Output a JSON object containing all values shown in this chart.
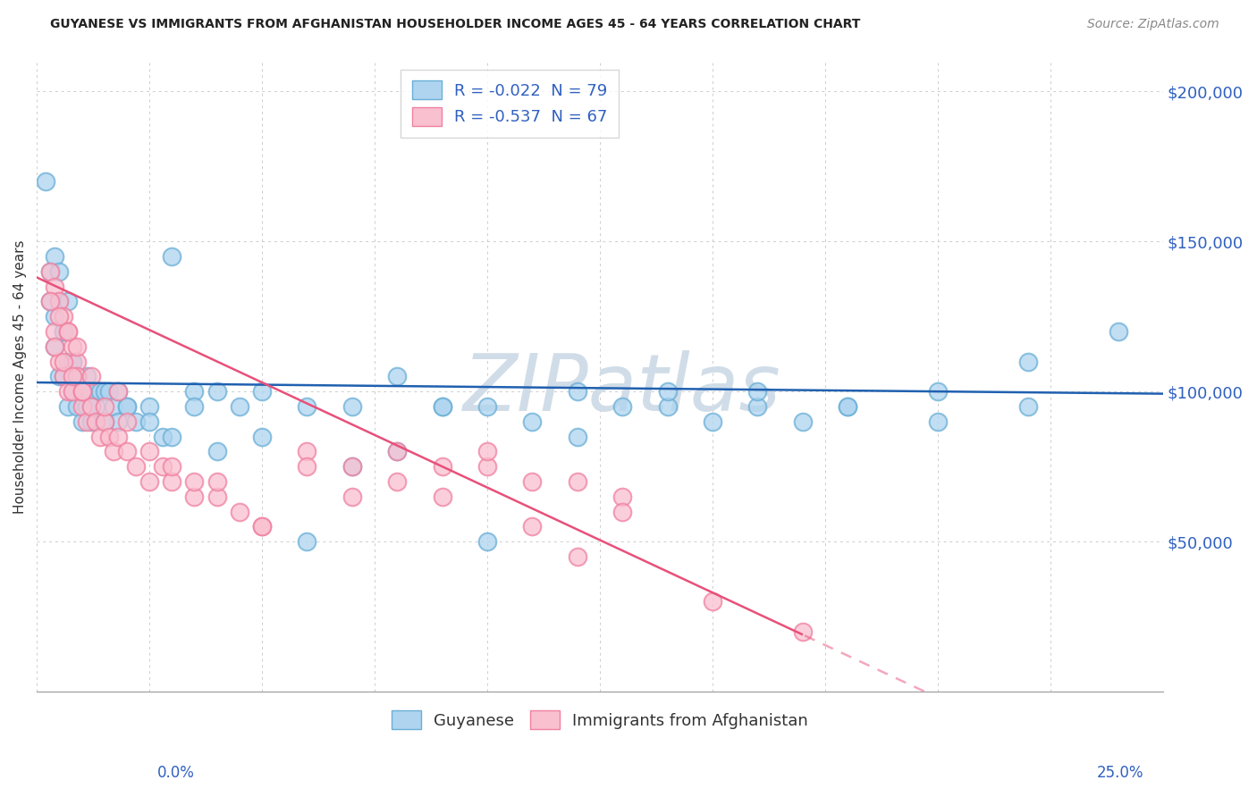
{
  "title": "GUYANESE VS IMMIGRANTS FROM AFGHANISTAN HOUSEHOLDER INCOME AGES 45 - 64 YEARS CORRELATION CHART",
  "source": "Source: ZipAtlas.com",
  "ylabel": "Householder Income Ages 45 - 64 years",
  "xlim": [
    0.0,
    0.25
  ],
  "ylim": [
    0,
    210000
  ],
  "ytick_vals": [
    0,
    50000,
    100000,
    150000,
    200000
  ],
  "ytick_labels": [
    "",
    "$50,000",
    "$100,000",
    "$150,000",
    "$200,000"
  ],
  "legend1_label": "R = -0.022  N = 79",
  "legend2_label": "R = -0.537  N = 67",
  "blue_scatter_face": "#aed4f0",
  "blue_scatter_edge": "#6aafd6",
  "pink_scatter_face": "#f9c0d0",
  "pink_scatter_edge": "#f080a0",
  "blue_line_color": "#2060b0",
  "pink_line_color": "#e8507a",
  "watermark_color": "#d0dde8",
  "axis_label_color": "#3060c0",
  "background_color": "#ffffff",
  "R_guyanese": -0.022,
  "N_guyanese": 79,
  "R_afghan": -0.537,
  "N_afghan": 67,
  "guyanese_x": [
    0.002,
    0.003,
    0.004,
    0.004,
    0.005,
    0.005,
    0.006,
    0.006,
    0.007,
    0.007,
    0.008,
    0.008,
    0.009,
    0.009,
    0.01,
    0.01,
    0.011,
    0.011,
    0.012,
    0.012,
    0.013,
    0.014,
    0.015,
    0.016,
    0.017,
    0.018,
    0.02,
    0.022,
    0.025,
    0.028,
    0.03,
    0.035,
    0.04,
    0.045,
    0.05,
    0.06,
    0.07,
    0.08,
    0.09,
    0.1,
    0.11,
    0.12,
    0.13,
    0.14,
    0.15,
    0.16,
    0.17,
    0.18,
    0.2,
    0.22,
    0.003,
    0.004,
    0.005,
    0.006,
    0.007,
    0.008,
    0.009,
    0.01,
    0.012,
    0.015,
    0.018,
    0.02,
    0.025,
    0.03,
    0.035,
    0.04,
    0.05,
    0.06,
    0.07,
    0.08,
    0.09,
    0.1,
    0.12,
    0.14,
    0.16,
    0.18,
    0.2,
    0.22,
    0.24
  ],
  "guyanese_y": [
    170000,
    140000,
    145000,
    115000,
    130000,
    105000,
    120000,
    105000,
    110000,
    95000,
    110000,
    100000,
    105000,
    95000,
    100000,
    90000,
    105000,
    95000,
    100000,
    90000,
    95000,
    100000,
    100000,
    100000,
    95000,
    90000,
    95000,
    90000,
    95000,
    85000,
    145000,
    100000,
    100000,
    95000,
    100000,
    95000,
    95000,
    105000,
    95000,
    95000,
    90000,
    85000,
    95000,
    95000,
    90000,
    95000,
    90000,
    95000,
    90000,
    95000,
    130000,
    125000,
    140000,
    120000,
    130000,
    110000,
    105000,
    100000,
    95000,
    90000,
    100000,
    95000,
    90000,
    85000,
    95000,
    80000,
    85000,
    50000,
    75000,
    80000,
    95000,
    50000,
    100000,
    100000,
    100000,
    95000,
    100000,
    110000,
    120000
  ],
  "afghan_x": [
    0.003,
    0.004,
    0.004,
    0.005,
    0.005,
    0.006,
    0.006,
    0.007,
    0.007,
    0.008,
    0.008,
    0.009,
    0.009,
    0.01,
    0.01,
    0.011,
    0.012,
    0.013,
    0.014,
    0.015,
    0.016,
    0.017,
    0.018,
    0.02,
    0.022,
    0.025,
    0.028,
    0.03,
    0.035,
    0.04,
    0.045,
    0.05,
    0.06,
    0.07,
    0.08,
    0.09,
    0.1,
    0.11,
    0.12,
    0.13,
    0.003,
    0.004,
    0.005,
    0.006,
    0.007,
    0.008,
    0.009,
    0.01,
    0.012,
    0.015,
    0.018,
    0.02,
    0.025,
    0.03,
    0.035,
    0.04,
    0.05,
    0.06,
    0.07,
    0.08,
    0.09,
    0.1,
    0.11,
    0.12,
    0.13,
    0.15,
    0.17
  ],
  "afghan_y": [
    140000,
    135000,
    120000,
    130000,
    110000,
    125000,
    105000,
    120000,
    100000,
    115000,
    100000,
    110000,
    105000,
    95000,
    100000,
    90000,
    95000,
    90000,
    85000,
    90000,
    85000,
    80000,
    85000,
    80000,
    75000,
    70000,
    75000,
    70000,
    65000,
    65000,
    60000,
    55000,
    80000,
    75000,
    80000,
    75000,
    75000,
    70000,
    70000,
    65000,
    130000,
    115000,
    125000,
    110000,
    120000,
    105000,
    115000,
    100000,
    105000,
    95000,
    100000,
    90000,
    80000,
    75000,
    70000,
    70000,
    55000,
    75000,
    65000,
    70000,
    65000,
    80000,
    55000,
    45000,
    60000,
    30000,
    20000
  ]
}
